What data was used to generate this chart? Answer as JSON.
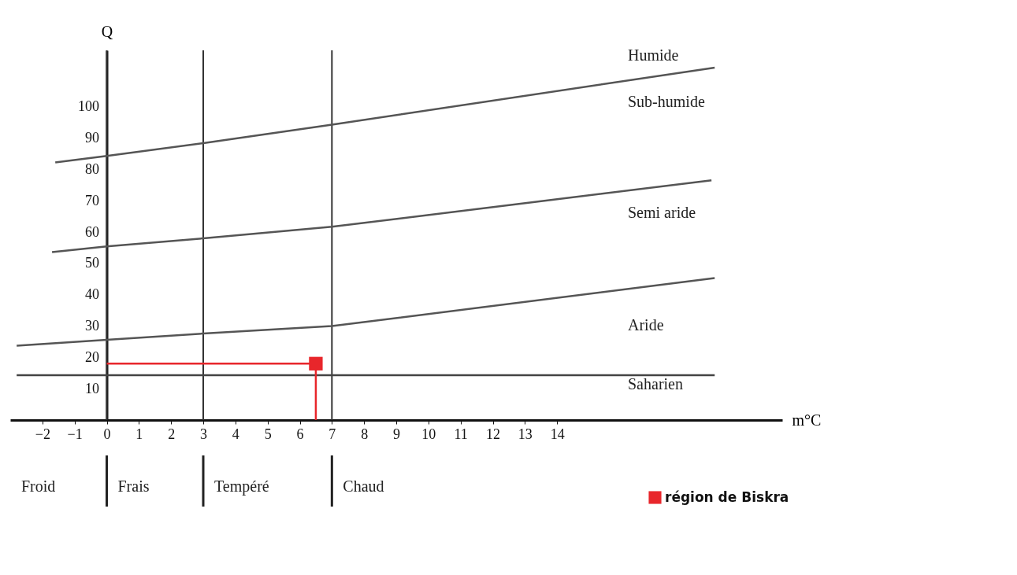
{
  "chart_data": {
    "type": "line",
    "xlabel": "m°C",
    "ylabel": "Q",
    "xlim": [
      -3,
      21
    ],
    "ylim": [
      0,
      118
    ],
    "xticks": [
      -2,
      -1,
      0,
      1,
      2,
      3,
      4,
      5,
      6,
      7,
      8,
      9,
      10,
      11,
      12,
      13,
      14
    ],
    "yticks": [
      10,
      20,
      30,
      40,
      50,
      60,
      70,
      80,
      90,
      100
    ],
    "grid": false,
    "legend": "bottom right",
    "line_style": "solid",
    "series": [
      {
        "color": "#555555",
        "x": [
          -1.6,
          0,
          3,
          7,
          18.9
        ],
        "values": [
          82.2,
          84.3,
          88.4,
          94.3,
          112.5
        ]
      },
      {
        "color": "#555555",
        "x": [
          -1.7,
          0,
          3,
          7,
          18.8
        ],
        "values": [
          53.6,
          55.4,
          58.0,
          61.7,
          76.5
        ]
      },
      {
        "color": "#555555",
        "x": [
          -2.8,
          0,
          3,
          7,
          18.9
        ],
        "values": [
          23.7,
          25.6,
          27.6,
          30.0,
          45.3
        ]
      },
      {
        "color": "#444444",
        "x": [
          -2.8,
          18.9
        ],
        "values": [
          14.3,
          14.3
        ]
      },
      {
        "color": "#e8262b",
        "x": [
          0,
          6.5,
          6.5
        ],
        "values": [
          18,
          18,
          0
        ]
      },
      {
        "type": "scatter",
        "name": "région de Biskra",
        "color": "#e8262b",
        "marker": "square",
        "x": [
          6.5
        ],
        "values": [
          18
        ]
      }
    ],
    "ref_lines": [
      {
        "axis": "x",
        "value": 0
      },
      {
        "axis": "x",
        "value": 3
      },
      {
        "axis": "x",
        "value": 7
      }
    ],
    "annotations": [
      "Humide",
      "Sub-humide",
      "Semi aride",
      "Aride",
      "Saharien",
      "Froid",
      "Frais",
      "Tempéré",
      "Chaud"
    ]
  }
}
